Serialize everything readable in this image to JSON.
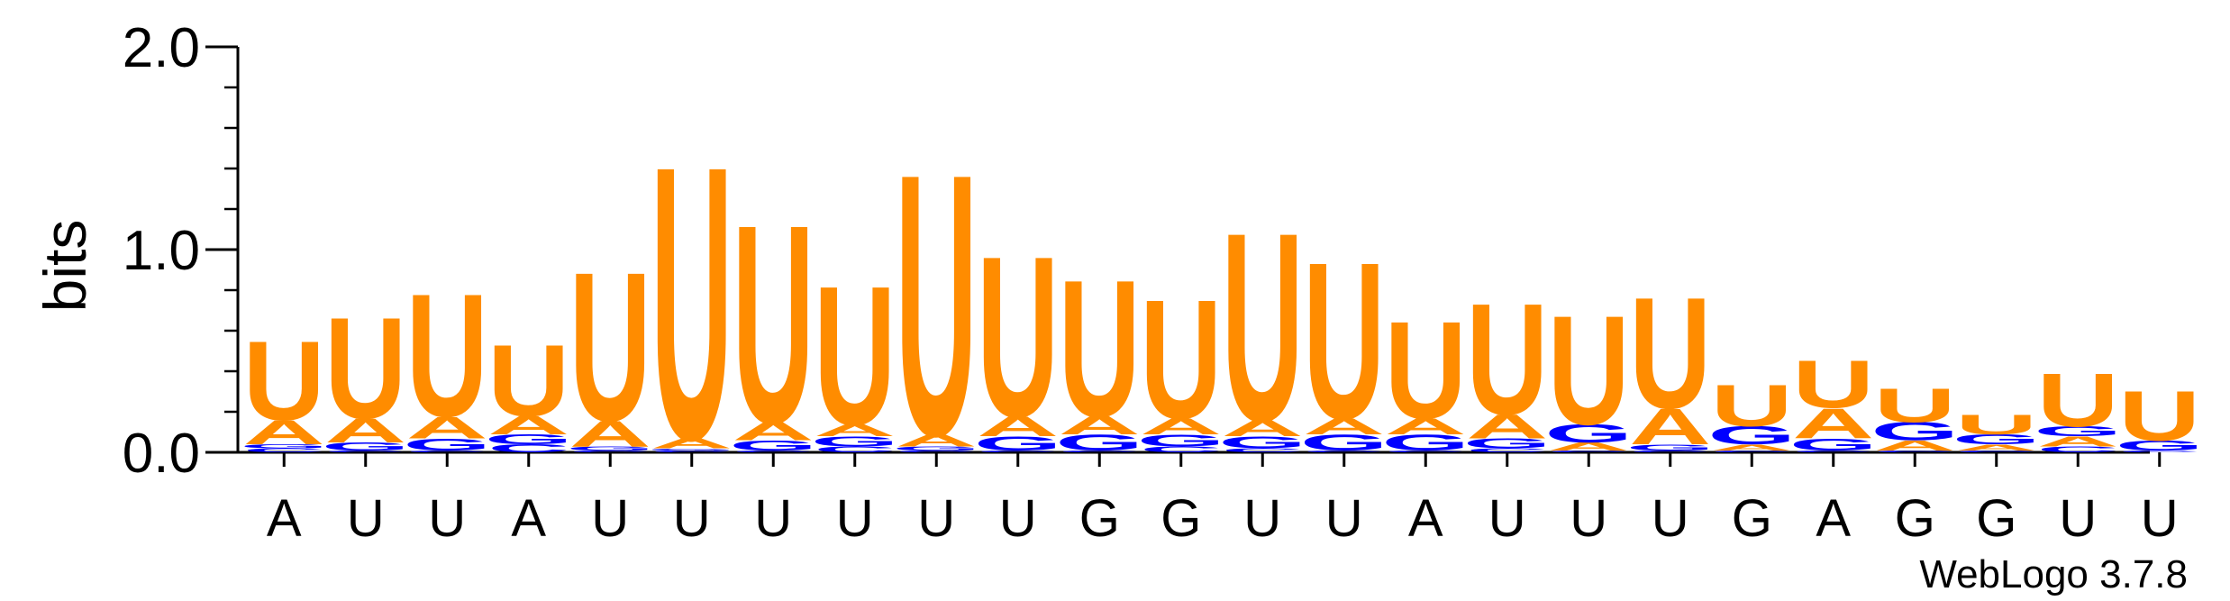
{
  "chart_data": {
    "type": "sequence-logo",
    "ylabel": "bits",
    "ylim": [
      0,
      2.0
    ],
    "yticks": [
      {
        "value": 0.0,
        "label": "0.0"
      },
      {
        "value": 1.0,
        "label": "1.0"
      },
      {
        "value": 2.0,
        "label": "2.0"
      }
    ],
    "xticklabels": [
      "A",
      "U",
      "U",
      "A",
      "U",
      "U",
      "U",
      "U",
      "U",
      "U",
      "G",
      "G",
      "U",
      "U",
      "A",
      "U",
      "U",
      "U",
      "G",
      "A",
      "G",
      "G",
      "U",
      "U"
    ],
    "colors": {
      "U": "#FF8C00",
      "A": "#FF8C00",
      "G": "#0000FF",
      "C": "#0000FF"
    },
    "positions": [
      {
        "stack": [
          [
            "C",
            0.02
          ],
          [
            "G",
            0.02
          ],
          [
            "A",
            0.12
          ],
          [
            "U",
            0.4
          ]
        ]
      },
      {
        "stack": [
          [
            "C",
            0.01
          ],
          [
            "G",
            0.04
          ],
          [
            "A",
            0.12
          ],
          [
            "U",
            0.51
          ]
        ]
      },
      {
        "stack": [
          [
            "C",
            0.01
          ],
          [
            "G",
            0.06
          ],
          [
            "A",
            0.11
          ],
          [
            "U",
            0.62
          ]
        ]
      },
      {
        "stack": [
          [
            "C",
            0.04
          ],
          [
            "G",
            0.05
          ],
          [
            "A",
            0.09
          ],
          [
            "U",
            0.36
          ]
        ]
      },
      {
        "stack": [
          [
            "C",
            0.01
          ],
          [
            "G",
            0.02
          ],
          [
            "A",
            0.13
          ],
          [
            "U",
            0.75
          ]
        ]
      },
      {
        "stack": [
          [
            "C",
            0.01
          ],
          [
            "G",
            0.01
          ],
          [
            "A",
            0.05
          ],
          [
            "U",
            1.38
          ]
        ]
      },
      {
        "stack": [
          [
            "C",
            0.01
          ],
          [
            "G",
            0.05
          ],
          [
            "A",
            0.09
          ],
          [
            "U",
            1.0
          ]
        ]
      },
      {
        "stack": [
          [
            "C",
            0.03
          ],
          [
            "G",
            0.05
          ],
          [
            "A",
            0.06
          ],
          [
            "U",
            0.7
          ]
        ]
      },
      {
        "stack": [
          [
            "C",
            0.01
          ],
          [
            "G",
            0.02
          ],
          [
            "A",
            0.06
          ],
          [
            "U",
            1.32
          ]
        ]
      },
      {
        "stack": [
          [
            "C",
            0.01
          ],
          [
            "G",
            0.07
          ],
          [
            "A",
            0.1
          ],
          [
            "U",
            0.81
          ]
        ]
      },
      {
        "stack": [
          [
            "C",
            0.01
          ],
          [
            "G",
            0.08
          ],
          [
            "A",
            0.09
          ],
          [
            "U",
            0.69
          ]
        ]
      },
      {
        "stack": [
          [
            "C",
            0.03
          ],
          [
            "G",
            0.06
          ],
          [
            "A",
            0.08
          ],
          [
            "U",
            0.6
          ]
        ]
      },
      {
        "stack": [
          [
            "C",
            0.02
          ],
          [
            "G",
            0.06
          ],
          [
            "A",
            0.08
          ],
          [
            "U",
            0.95
          ]
        ]
      },
      {
        "stack": [
          [
            "C",
            0.01
          ],
          [
            "G",
            0.08
          ],
          [
            "A",
            0.08
          ],
          [
            "U",
            0.79
          ]
        ]
      },
      {
        "stack": [
          [
            "C",
            0.01
          ],
          [
            "G",
            0.08
          ],
          [
            "A",
            0.08
          ],
          [
            "U",
            0.49
          ]
        ]
      },
      {
        "stack": [
          [
            "C",
            0.02
          ],
          [
            "G",
            0.05
          ],
          [
            "A",
            0.12
          ],
          [
            "U",
            0.56
          ]
        ]
      },
      {
        "stack": [
          [
            "C",
            0.01
          ],
          [
            "A",
            0.04
          ],
          [
            "G",
            0.09
          ],
          [
            "U",
            0.55
          ]
        ]
      },
      {
        "stack": [
          [
            "C",
            0.01
          ],
          [
            "G",
            0.03
          ],
          [
            "A",
            0.18
          ],
          [
            "U",
            0.56
          ]
        ]
      },
      {
        "stack": [
          [
            "C",
            0.01
          ],
          [
            "A",
            0.03
          ],
          [
            "G",
            0.09
          ],
          [
            "U",
            0.21
          ]
        ]
      },
      {
        "stack": [
          [
            "C",
            0.01
          ],
          [
            "G",
            0.06
          ],
          [
            "A",
            0.15
          ],
          [
            "U",
            0.24
          ]
        ]
      },
      {
        "stack": [
          [
            "C",
            0.01
          ],
          [
            "A",
            0.05
          ],
          [
            "G",
            0.09
          ],
          [
            "U",
            0.17
          ]
        ]
      },
      {
        "stack": [
          [
            "C",
            0.01
          ],
          [
            "A",
            0.03
          ],
          [
            "G",
            0.05
          ],
          [
            "U",
            0.1
          ]
        ]
      },
      {
        "stack": [
          [
            "C",
            0.03
          ],
          [
            "A",
            0.05
          ],
          [
            "G",
            0.05
          ],
          [
            "U",
            0.27
          ]
        ]
      },
      {
        "stack": [
          [
            "C",
            0.01
          ],
          [
            "G",
            0.05
          ],
          [
            "U",
            0.25
          ]
        ]
      }
    ]
  },
  "footer": {
    "version_label": "WebLogo 3.7.8"
  }
}
